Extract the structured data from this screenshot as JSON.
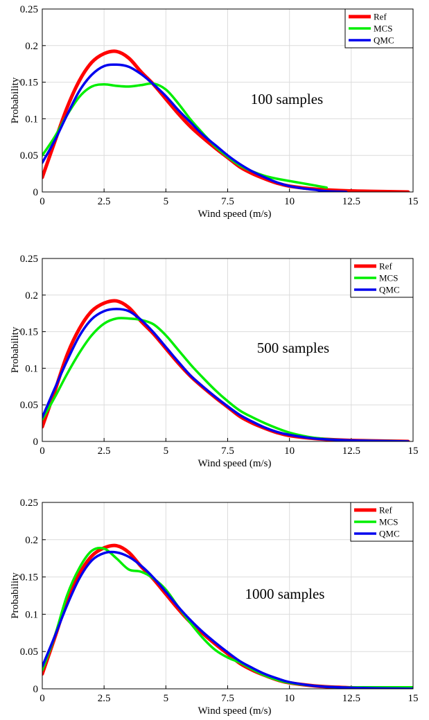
{
  "chart_data": [
    {
      "type": "line",
      "annotation": "100 samples",
      "xlabel": "Wind speed (m/s)",
      "ylabel": "Probability",
      "xlim": [
        0,
        15
      ],
      "ylim": [
        0,
        0.25
      ],
      "xticks": [
        "0",
        "2.5",
        "5",
        "7.5",
        "10",
        "12.5",
        "15"
      ],
      "yticks": [
        "0",
        "0.05",
        "0.1",
        "0.15",
        "0.2",
        "0.25"
      ],
      "grid": true,
      "legend_position": "top-right",
      "series": [
        {
          "name": "Ref",
          "color": "#ff0000",
          "x": [
            0,
            0.5,
            1,
            1.5,
            2,
            2.5,
            3,
            3.5,
            4,
            4.5,
            5,
            5.5,
            6,
            6.5,
            7,
            7.5,
            8,
            8.5,
            9,
            9.5,
            10,
            11,
            12,
            13,
            14,
            14.8
          ],
          "y": [
            0.02,
            0.068,
            0.115,
            0.152,
            0.177,
            0.189,
            0.192,
            0.183,
            0.164,
            0.147,
            0.127,
            0.107,
            0.089,
            0.074,
            0.06,
            0.047,
            0.034,
            0.025,
            0.018,
            0.012,
            0.008,
            0.004,
            0.002,
            0.001,
            0.0005,
            0.0
          ]
        },
        {
          "name": "MCS",
          "color": "#00ee00",
          "x": [
            0,
            0.5,
            1,
            1.5,
            2,
            2.5,
            3,
            3.5,
            4,
            4.5,
            5,
            5.5,
            6,
            6.5,
            7,
            7.5,
            8,
            8.5,
            9,
            9.5,
            10,
            10.5,
            11,
            11.5
          ],
          "y": [
            0.05,
            0.075,
            0.105,
            0.13,
            0.144,
            0.147,
            0.145,
            0.144,
            0.146,
            0.148,
            0.14,
            0.121,
            0.099,
            0.08,
            0.062,
            0.048,
            0.036,
            0.028,
            0.022,
            0.018,
            0.015,
            0.012,
            0.009,
            0.006
          ]
        },
        {
          "name": "QMC",
          "color": "#0000ee",
          "x": [
            0,
            0.5,
            1,
            1.5,
            2,
            2.5,
            3,
            3.5,
            4,
            4.5,
            5,
            5.5,
            6,
            6.5,
            7,
            7.5,
            8,
            8.5,
            9,
            9.5,
            10,
            10.5,
            11,
            11.5,
            12,
            12.3
          ],
          "y": [
            0.04,
            0.07,
            0.105,
            0.138,
            0.16,
            0.172,
            0.174,
            0.171,
            0.161,
            0.147,
            0.131,
            0.112,
            0.095,
            0.078,
            0.064,
            0.05,
            0.038,
            0.028,
            0.02,
            0.013,
            0.008,
            0.005,
            0.003,
            0.001,
            0.0005,
            0.0
          ]
        }
      ]
    },
    {
      "type": "line",
      "annotation": "500 samples",
      "xlabel": "Wind speed (m/s)",
      "ylabel": "Probability",
      "xlim": [
        0,
        15
      ],
      "ylim": [
        0,
        0.25
      ],
      "xticks": [
        "0",
        "2.5",
        "5",
        "7.5",
        "10",
        "12.5",
        "15"
      ],
      "yticks": [
        "0",
        "0.05",
        "0.1",
        "0.15",
        "0.2",
        "0.25"
      ],
      "grid": true,
      "legend_position": "top-right",
      "series": [
        {
          "name": "Ref",
          "color": "#ff0000",
          "x": [
            0,
            0.5,
            1,
            1.5,
            2,
            2.5,
            3,
            3.5,
            4,
            4.5,
            5,
            5.5,
            6,
            6.5,
            7,
            7.5,
            8,
            8.5,
            9,
            9.5,
            10,
            11,
            12,
            13,
            14,
            14.8
          ],
          "y": [
            0.02,
            0.068,
            0.118,
            0.154,
            0.178,
            0.189,
            0.192,
            0.183,
            0.164,
            0.147,
            0.127,
            0.107,
            0.089,
            0.074,
            0.06,
            0.047,
            0.034,
            0.025,
            0.018,
            0.012,
            0.008,
            0.004,
            0.002,
            0.001,
            0.0005,
            0.0
          ]
        },
        {
          "name": "MCS",
          "color": "#00ee00",
          "x": [
            0,
            0.5,
            1,
            1.5,
            2,
            2.5,
            3,
            3.5,
            4,
            4.5,
            5,
            5.5,
            6,
            6.5,
            7,
            7.5,
            8,
            8.5,
            9,
            9.5,
            10,
            10.5,
            11,
            12,
            13,
            14,
            14.7
          ],
          "y": [
            0.03,
            0.06,
            0.092,
            0.121,
            0.145,
            0.161,
            0.168,
            0.168,
            0.166,
            0.16,
            0.145,
            0.125,
            0.105,
            0.087,
            0.07,
            0.055,
            0.042,
            0.033,
            0.025,
            0.018,
            0.012,
            0.008,
            0.005,
            0.002,
            0.001,
            0.0005,
            0.0
          ]
        },
        {
          "name": "QMC",
          "color": "#0000ee",
          "x": [
            0,
            0.5,
            1,
            1.5,
            2,
            2.5,
            3,
            3.5,
            4,
            4.5,
            5,
            5.5,
            6,
            6.5,
            7,
            7.5,
            8,
            8.5,
            9,
            9.5,
            10,
            11,
            12,
            13,
            14,
            14.8
          ],
          "y": [
            0.033,
            0.072,
            0.11,
            0.144,
            0.167,
            0.178,
            0.181,
            0.178,
            0.166,
            0.149,
            0.129,
            0.109,
            0.09,
            0.075,
            0.061,
            0.048,
            0.036,
            0.027,
            0.019,
            0.013,
            0.009,
            0.004,
            0.002,
            0.001,
            0.0005,
            0.0
          ]
        }
      ]
    },
    {
      "type": "line",
      "annotation": "1000 samples",
      "xlabel": "Wind speed (m/s)",
      "ylabel": "Probability",
      "xlim": [
        0,
        15
      ],
      "ylim": [
        0,
        0.25
      ],
      "xticks": [
        "0",
        "2.5",
        "5",
        "7.5",
        "10",
        "12.5",
        "15"
      ],
      "yticks": [
        "0",
        "0.05",
        "0.1",
        "0.15",
        "0.2",
        "0.25"
      ],
      "grid": true,
      "legend_position": "top-right",
      "series": [
        {
          "name": "Ref",
          "color": "#ff0000",
          "x": [
            0,
            0.5,
            1,
            1.5,
            2,
            2.5,
            3,
            3.5,
            4,
            4.5,
            5,
            5.5,
            6,
            6.5,
            7,
            7.5,
            8,
            8.5,
            9,
            9.5,
            10,
            11,
            12,
            13,
            14,
            15
          ],
          "y": [
            0.02,
            0.068,
            0.118,
            0.154,
            0.178,
            0.189,
            0.192,
            0.183,
            0.164,
            0.147,
            0.127,
            0.107,
            0.089,
            0.074,
            0.06,
            0.047,
            0.034,
            0.025,
            0.018,
            0.012,
            0.008,
            0.004,
            0.002,
            0.001,
            0.0005,
            0.0
          ]
        },
        {
          "name": "MCS",
          "color": "#00ee00",
          "x": [
            0,
            0.5,
            1,
            1.5,
            2,
            2.5,
            3,
            3.5,
            4,
            4.5,
            5,
            5.5,
            6,
            6.5,
            7,
            7.5,
            8,
            8.5,
            9,
            9.5,
            10,
            11,
            12,
            13,
            14,
            15
          ],
          "y": [
            0.025,
            0.07,
            0.125,
            0.162,
            0.185,
            0.188,
            0.175,
            0.16,
            0.157,
            0.148,
            0.133,
            0.11,
            0.088,
            0.068,
            0.052,
            0.042,
            0.035,
            0.026,
            0.018,
            0.012,
            0.008,
            0.004,
            0.002,
            0.002,
            0.002,
            0.002
          ]
        },
        {
          "name": "QMC",
          "color": "#0000ee",
          "x": [
            0,
            0.5,
            1,
            1.5,
            2,
            2.5,
            3,
            3.5,
            4,
            4.5,
            5,
            5.5,
            6,
            6.5,
            7,
            7.5,
            8,
            8.5,
            9,
            9.5,
            10,
            11,
            12,
            13,
            14,
            15
          ],
          "y": [
            0.03,
            0.07,
            0.112,
            0.148,
            0.172,
            0.182,
            0.183,
            0.177,
            0.165,
            0.149,
            0.13,
            0.11,
            0.092,
            0.076,
            0.062,
            0.049,
            0.037,
            0.028,
            0.02,
            0.014,
            0.009,
            0.004,
            0.002,
            0.001,
            0.0005,
            0.0
          ]
        }
      ]
    }
  ]
}
